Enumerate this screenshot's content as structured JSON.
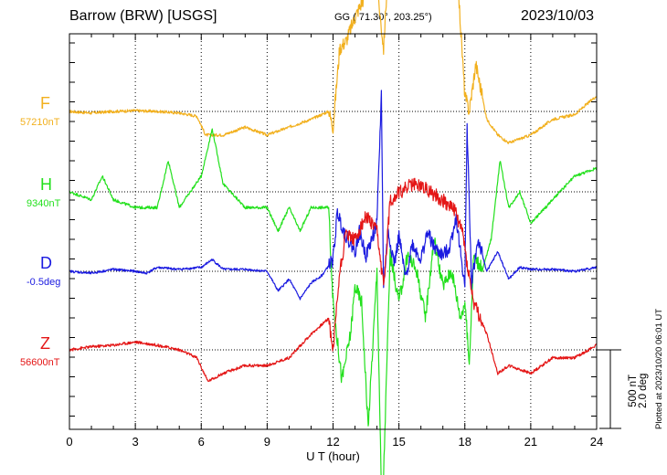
{
  "title": {
    "station": "Barrow (BRW)  [USGS]",
    "coords": "GG ( 71.30°, 203.25°)",
    "date": "2023/10/03"
  },
  "plotted_note": "Plotted at 2023/10/20 06:01 UT",
  "scale": {
    "line1": "500 nT",
    "line2": "2.0 deg"
  },
  "chart_data": {
    "type": "line",
    "title": "Barrow (BRW)  [USGS]",
    "xlabel": "U T (hour)",
    "xlim": [
      0,
      24
    ],
    "xticks": [
      "0",
      "3",
      "6",
      "9",
      "12",
      "15",
      "18",
      "21",
      "24"
    ],
    "grid": true,
    "scale_nT_per_division": 500,
    "scale_deg_per_division": 2.0,
    "series": [
      {
        "name": "F",
        "baseline_label": "57210nT",
        "unit": "nT",
        "baseline": 57210,
        "color": "#f2b01e",
        "x": [
          0,
          1,
          2,
          3,
          4,
          5,
          5.8,
          6.2,
          7,
          8,
          9,
          10,
          11,
          11.8,
          12,
          12.3,
          12.6,
          13,
          13.5,
          14,
          14.3,
          14.5,
          15,
          15.5,
          16,
          16.5,
          17,
          17.6,
          18,
          18.2,
          18.5,
          19,
          19.5,
          20,
          21,
          22,
          23,
          24
        ],
        "values": [
          0,
          -10,
          0,
          5,
          0,
          -10,
          -30,
          -150,
          -150,
          -100,
          -150,
          -100,
          -50,
          0,
          -100,
          400,
          450,
          600,
          750,
          800,
          400,
          900,
          1000,
          1100,
          1100,
          1150,
          1100,
          1000,
          100,
          0,
          300,
          -50,
          -150,
          -200,
          -150,
          -50,
          -20,
          100
        ]
      },
      {
        "name": "H",
        "baseline_label": "9340nT",
        "unit": "nT",
        "baseline": 9340,
        "color": "#22e01c",
        "x": [
          0,
          1,
          1.5,
          2,
          3,
          4,
          4.5,
          5,
          6,
          6.5,
          7,
          8,
          9,
          9.5,
          10,
          10.5,
          11,
          11.5,
          11.8,
          12,
          12.4,
          12.8,
          13,
          13.3,
          13.6,
          14,
          14.2,
          14.3,
          14.6,
          15,
          15.4,
          15.8,
          16.2,
          16.6,
          17,
          17.4,
          17.8,
          18,
          18.2,
          18.4,
          18.8,
          19.2,
          19.6,
          20,
          20.5,
          21,
          22,
          23,
          24
        ],
        "values": [
          0,
          -50,
          100,
          -50,
          -100,
          -100,
          200,
          -100,
          100,
          400,
          50,
          -100,
          -100,
          -250,
          -100,
          -250,
          -100,
          -100,
          -100,
          -700,
          -1200,
          -900,
          -600,
          -700,
          -1500,
          -500,
          -1900,
          -1800,
          -400,
          -700,
          -400,
          -500,
          -800,
          -300,
          -600,
          -500,
          -800,
          -700,
          -1100,
          -400,
          -500,
          -300,
          200,
          -100,
          0,
          -200,
          -50,
          100,
          150
        ]
      },
      {
        "name": "D",
        "baseline_label": "-0.5deg",
        "unit": "deg",
        "baseline": -0.5,
        "color": "#1a1ae0",
        "x": [
          0,
          1,
          2,
          3,
          3.5,
          4,
          5,
          6,
          6.5,
          7,
          8,
          9,
          9.5,
          10,
          10.5,
          11,
          11.5,
          12,
          12.2,
          12.5,
          12.8,
          13,
          13.2,
          13.5,
          14,
          14.2,
          14.3,
          14.5,
          14.8,
          15,
          15.3,
          15.6,
          16,
          16.3,
          16.6,
          17,
          17.3,
          17.6,
          18,
          18.1,
          18.3,
          18.6,
          19,
          19.5,
          20,
          20.5,
          21,
          22,
          23,
          24
        ],
        "values": [
          0,
          -0.05,
          0.05,
          0,
          -0.05,
          0.1,
          0.05,
          0.1,
          0.3,
          0.05,
          0.05,
          0,
          -0.5,
          -0.2,
          -0.7,
          -0.3,
          -0.1,
          0.3,
          1.5,
          1.0,
          0.7,
          0.5,
          1.0,
          0.4,
          1.2,
          4.5,
          -0.4,
          1.0,
          0.2,
          0.9,
          -0.2,
          0.7,
          0.3,
          1.0,
          0.6,
          0.4,
          0.6,
          1.4,
          -0.4,
          3.8,
          -0.3,
          0.8,
          0.0,
          0.5,
          -0.2,
          0.1,
          0.05,
          0.05,
          0,
          0.1
        ]
      },
      {
        "name": "Z",
        "baseline_label": "56600nT",
        "unit": "nT",
        "baseline": 56600,
        "color": "#e41616",
        "x": [
          0,
          1,
          2,
          3,
          4,
          5,
          5.8,
          6.3,
          7,
          8,
          9,
          10,
          11,
          11.8,
          12,
          12.3,
          12.6,
          13,
          13.5,
          14,
          14.3,
          14.6,
          15,
          15.5,
          16,
          16.5,
          17,
          17.5,
          17.9,
          18.1,
          18.4,
          19,
          19.5,
          20,
          21,
          22,
          23,
          24
        ],
        "values": [
          0,
          20,
          30,
          50,
          30,
          0,
          -50,
          -200,
          -150,
          -100,
          -100,
          -50,
          100,
          200,
          0,
          500,
          750,
          700,
          850,
          750,
          400,
          950,
          1000,
          1050,
          1050,
          1000,
          950,
          900,
          750,
          550,
          300,
          100,
          -150,
          -100,
          -150,
          -50,
          -50,
          30
        ]
      }
    ]
  }
}
